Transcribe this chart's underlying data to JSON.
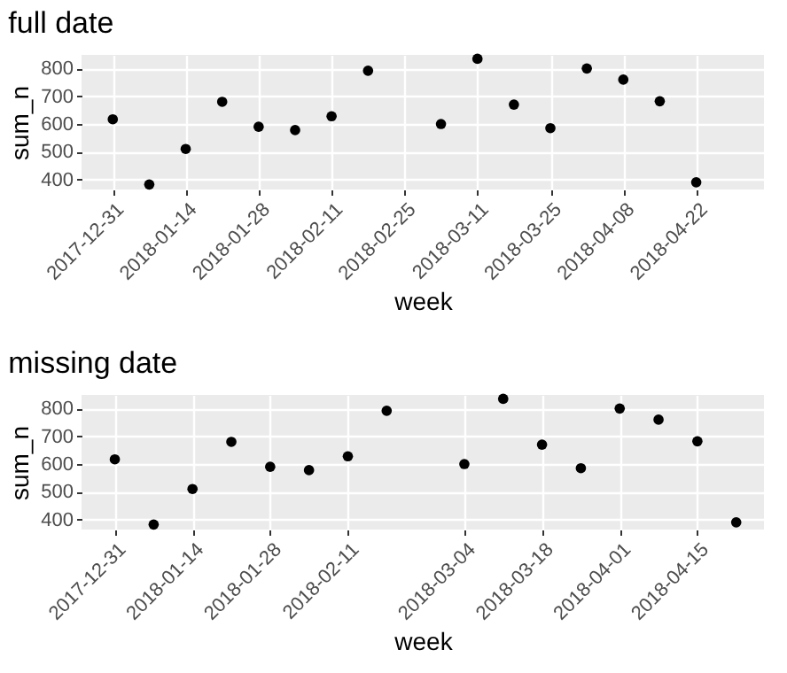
{
  "chart_data": [
    {
      "type": "scatter",
      "title": "full date",
      "xlabel": "week",
      "ylabel": "sum_n",
      "x": [
        "2017-12-31",
        "2018-01-07",
        "2018-01-14",
        "2018-01-21",
        "2018-01-28",
        "2018-02-04",
        "2018-02-11",
        "2018-02-18",
        "2018-03-04",
        "2018-03-11",
        "2018-03-18",
        "2018-03-25",
        "2018-04-01",
        "2018-04-08",
        "2018-04-15",
        "2018-04-22"
      ],
      "values": [
        617,
        382,
        510,
        680,
        590,
        578,
        628,
        792,
        600,
        835,
        670,
        585,
        800,
        760,
        682,
        390
      ],
      "color": "#000000",
      "marker": "circle",
      "grid": true,
      "xlim": [
        "2017-12-25",
        "2018-05-05"
      ],
      "xticks": [
        "2017-12-31",
        "2018-01-14",
        "2018-01-28",
        "2018-02-11",
        "2018-02-25",
        "2018-03-11",
        "2018-03-25",
        "2018-04-08",
        "2018-04-22"
      ],
      "ylim": [
        364,
        849
      ],
      "yticks": [
        400,
        500,
        600,
        700,
        800
      ]
    },
    {
      "type": "scatter",
      "title": "missing date",
      "xlabel": "week",
      "ylabel": "sum_n",
      "x": [
        "2017-12-31",
        "2018-01-07",
        "2018-01-14",
        "2018-01-21",
        "2018-01-28",
        "2018-02-04",
        "2018-02-11",
        "2018-02-18",
        "2018-03-04",
        "2018-03-11",
        "2018-03-18",
        "2018-03-25",
        "2018-04-01",
        "2018-04-08",
        "2018-04-15",
        "2018-04-22"
      ],
      "values": [
        617,
        382,
        510,
        680,
        590,
        578,
        628,
        792,
        600,
        835,
        670,
        585,
        800,
        760,
        682,
        390
      ],
      "color": "#000000",
      "marker": "circle",
      "grid": true,
      "xlim": [
        "2017-12-25",
        "2018-04-27"
      ],
      "xticks": [
        "2017-12-31",
        "2018-01-14",
        "2018-01-28",
        "2018-02-11",
        "2018-03-04",
        "2018-03-18",
        "2018-04-01",
        "2018-04-15"
      ],
      "ylim": [
        364,
        849
      ],
      "yticks": [
        400,
        500,
        600,
        700,
        800
      ]
    }
  ]
}
